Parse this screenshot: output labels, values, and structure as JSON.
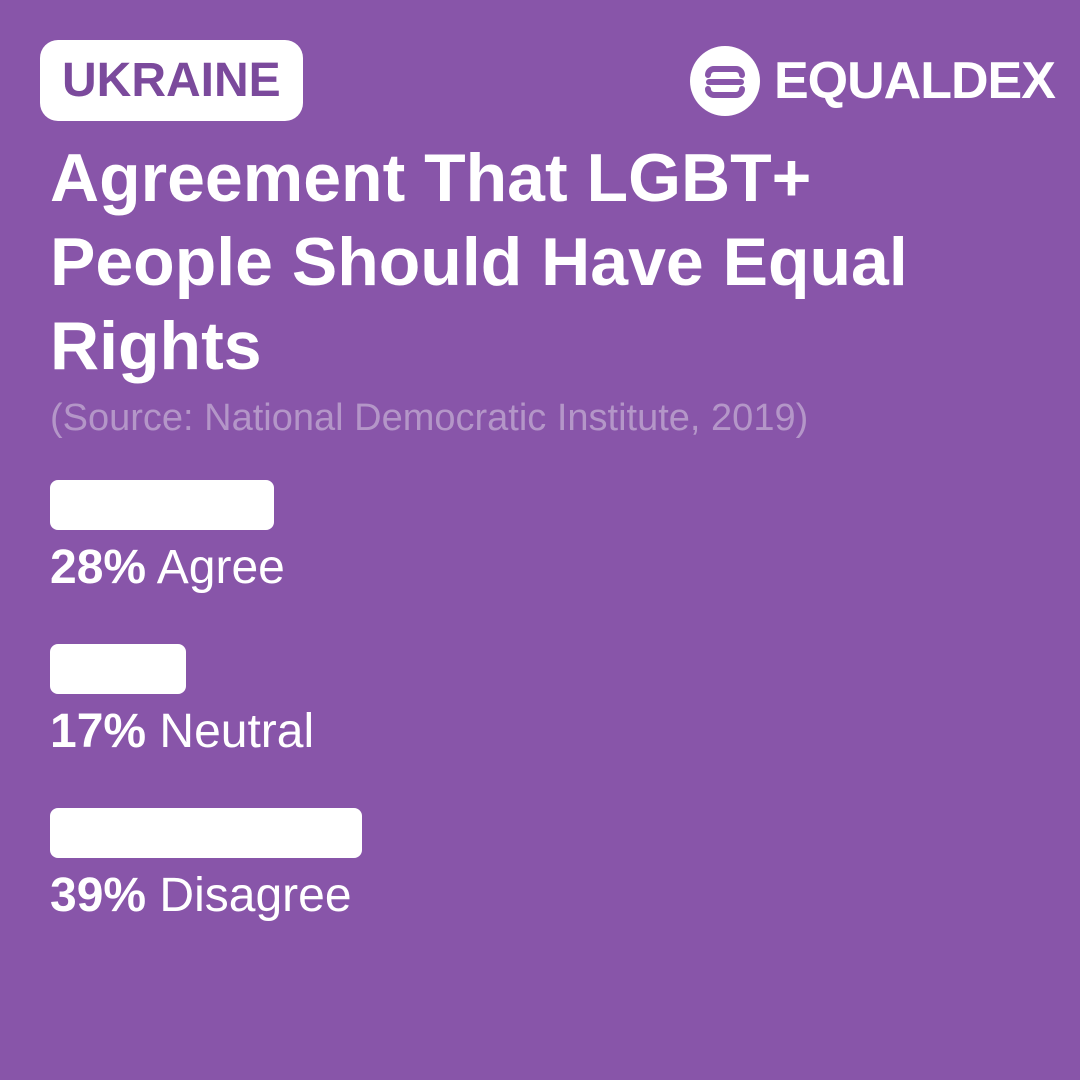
{
  "country": "UKRAINE",
  "brand": {
    "name": "EQUALDEX",
    "icon": "equaldex-logo-icon"
  },
  "colors": {
    "background": "#8855a9",
    "badge_text": "#7b4a9c",
    "source_text": "#b496c8",
    "bar": "#ffffff"
  },
  "chart_data": {
    "type": "bar",
    "orientation": "horizontal",
    "title": "Agreement That LGBT+ People Should Have Equal Rights",
    "subtitle": "(Source: National Democratic Institute, 2019)",
    "categories": [
      "Agree",
      "Neutral",
      "Disagree"
    ],
    "values": [
      28,
      17,
      39
    ],
    "value_labels": [
      "28%",
      "17%",
      "39%"
    ],
    "unit": "%",
    "xlim": [
      0,
      100
    ],
    "grid": false,
    "legend": "none"
  }
}
